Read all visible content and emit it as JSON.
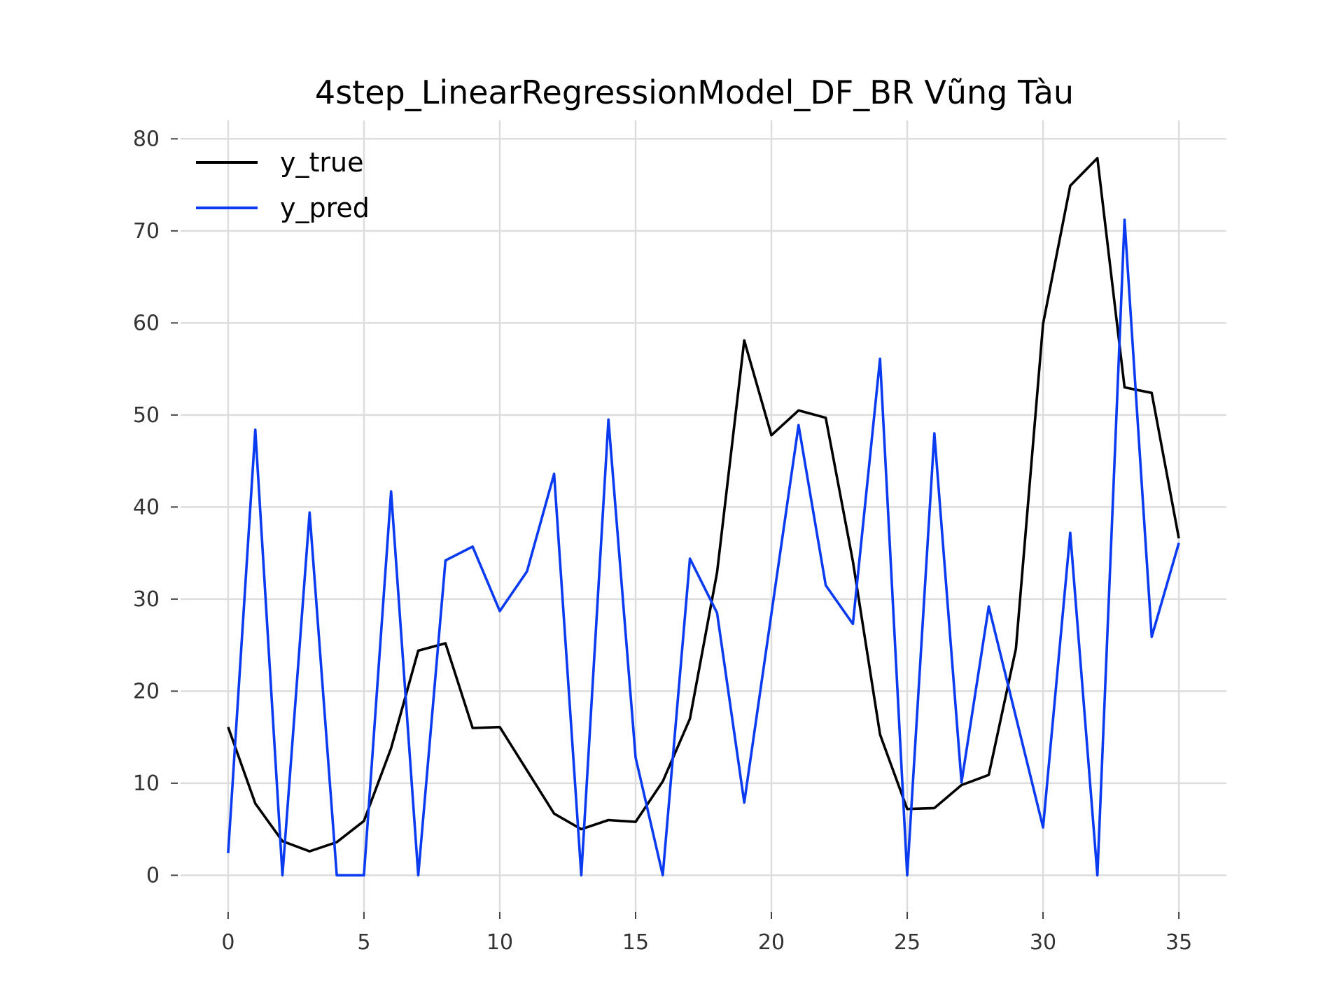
{
  "chart_data": {
    "type": "line",
    "title": "4step_LinearRegressionModel_DF_BR Vũng Tàu",
    "xlabel": "",
    "ylabel": "",
    "xlim": [
      -1.75,
      36.75
    ],
    "ylim": [
      -4,
      82
    ],
    "x_ticks": [
      0,
      5,
      10,
      15,
      20,
      25,
      30,
      35
    ],
    "y_ticks": [
      0,
      10,
      20,
      30,
      40,
      50,
      60,
      70,
      80
    ],
    "grid": true,
    "legend_position": "top-left",
    "x": [
      0,
      1,
      2,
      3,
      4,
      5,
      6,
      7,
      8,
      9,
      10,
      11,
      12,
      13,
      14,
      15,
      16,
      17,
      18,
      19,
      20,
      21,
      22,
      23,
      24,
      25,
      26,
      27,
      28,
      29,
      30,
      31,
      32,
      33,
      34,
      35
    ],
    "series": [
      {
        "name": "y_true",
        "color": "#000000",
        "values": [
          16.1,
          7.8,
          3.7,
          2.6,
          3.6,
          5.9,
          13.8,
          24.4,
          25.2,
          16.0,
          16.1,
          11.4,
          6.7,
          5.0,
          6.0,
          5.8,
          10.2,
          17.0,
          32.9,
          58.1,
          47.8,
          50.5,
          49.7,
          34.1,
          15.3,
          7.2,
          7.3,
          9.8,
          10.9,
          24.6,
          59.9,
          74.9,
          77.9,
          53.0,
          52.4,
          36.6
        ]
      },
      {
        "name": "y_pred",
        "color": "#0a3bf0",
        "values": [
          2.4,
          48.4,
          0.0,
          39.4,
          0.0,
          0.0,
          41.7,
          0.0,
          34.2,
          35.7,
          28.7,
          33.0,
          43.6,
          0.0,
          49.5,
          12.8,
          0.0,
          34.4,
          28.5,
          7.9,
          28.4,
          48.9,
          31.5,
          27.3,
          56.1,
          0.0,
          48.0,
          10.1,
          29.2,
          17.2,
          5.2,
          37.2,
          0.0,
          71.2,
          25.9,
          36.1
        ]
      }
    ]
  }
}
